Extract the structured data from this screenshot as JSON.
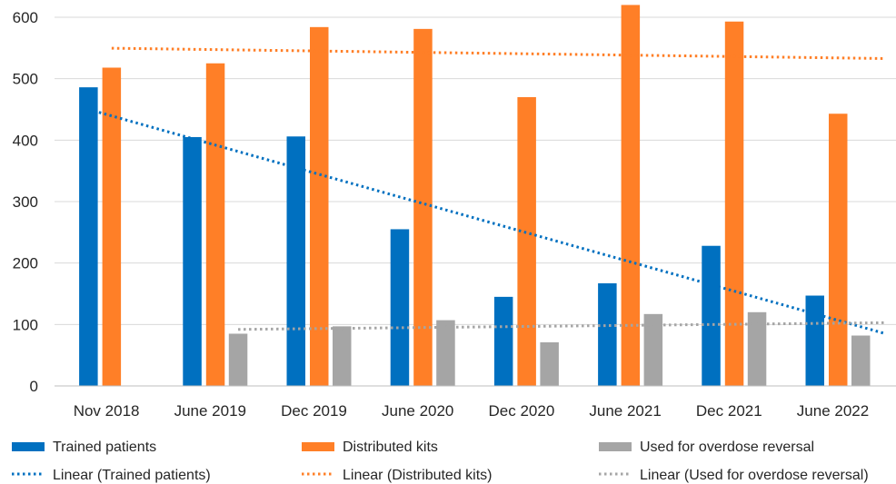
{
  "chart_data": {
    "type": "bar",
    "title": "",
    "xlabel": "",
    "ylabel": "",
    "ylim": [
      0,
      600
    ],
    "yticks": [
      0,
      100,
      200,
      300,
      400,
      500,
      600
    ],
    "grid": true,
    "legend_position": "bottom",
    "categories": [
      "Nov 2018",
      "June 2019",
      "Dec 2019",
      "June 2020",
      "Dec 2020",
      "June 2021",
      "Dec 2021",
      "June 2022"
    ],
    "series": [
      {
        "name": "Trained patients",
        "color": "#0070C0",
        "values": [
          486,
          405,
          406,
          255,
          145,
          167,
          228,
          147
        ]
      },
      {
        "name": "Distributed kits",
        "color": "#FF7F27",
        "values": [
          518,
          525,
          584,
          581,
          470,
          620,
          593,
          443
        ]
      },
      {
        "name": "Used for overdose reversal",
        "color": "#A5A5A5",
        "values": [
          null,
          85,
          97,
          107,
          71,
          117,
          120,
          82
        ]
      }
    ],
    "trendlines": [
      {
        "name": "Linear (Trained patients)",
        "color": "#0070C0",
        "style": "dotted"
      },
      {
        "name": "Linear (Distributed kits)",
        "color": "#FF7F27",
        "style": "dotted"
      },
      {
        "name": "Linear (Used for overdose reversal)",
        "color": "#A5A5A5",
        "style": "dotted"
      }
    ]
  }
}
